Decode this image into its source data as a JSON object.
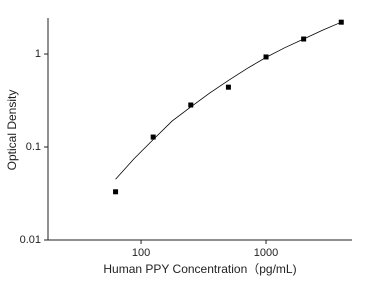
{
  "chart_data": {
    "type": "scatter",
    "xlabel": "Human PPY Concentration（pg/mL)",
    "ylabel": "Optical Density",
    "xlog": true,
    "ylog": true,
    "xlim": [
      18,
      4875
    ],
    "ylim": [
      0.01,
      2.44
    ],
    "xticks": [
      100,
      1000
    ],
    "yticks": [
      0.01,
      0.1,
      1
    ],
    "series": [
      {
        "type": "scatter",
        "color": "#000000",
        "x": [
          62.5,
          125,
          250,
          500,
          1000,
          2000,
          4000
        ],
        "values": [
          0.033,
          0.128,
          0.283,
          0.44,
          0.93,
          1.45,
          2.2
        ]
      },
      {
        "type": "line",
        "color": "#000000",
        "x": [
          62.5,
          88,
          125,
          177,
          250,
          354,
          500,
          707,
          1000,
          1414,
          2000,
          2828,
          4000
        ],
        "values": [
          0.045,
          0.075,
          0.12,
          0.19,
          0.27,
          0.38,
          0.52,
          0.7,
          0.92,
          1.17,
          1.45,
          1.8,
          2.2
        ]
      }
    ]
  }
}
